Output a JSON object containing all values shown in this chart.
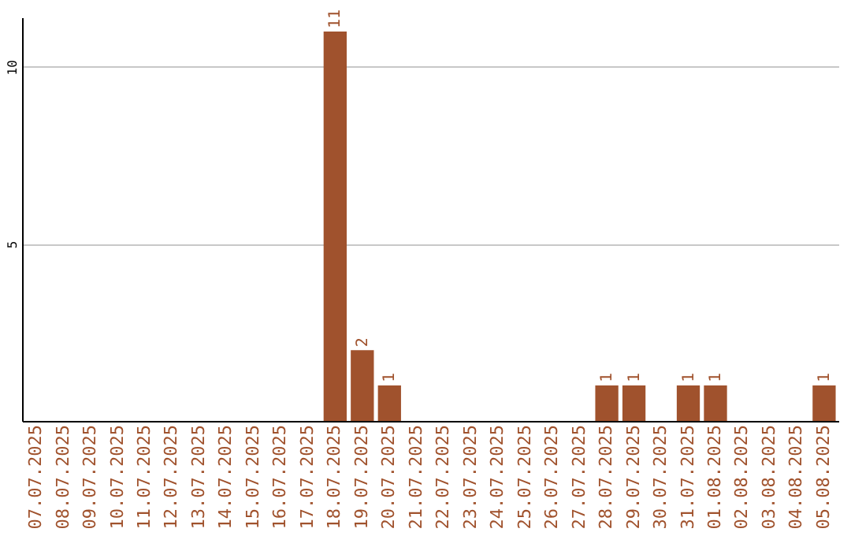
{
  "chart_data": {
    "type": "bar",
    "categories": [
      "07.07.2025",
      "08.07.2025",
      "09.07.2025",
      "10.07.2025",
      "11.07.2025",
      "12.07.2025",
      "13.07.2025",
      "14.07.2025",
      "15.07.2025",
      "16.07.2025",
      "17.07.2025",
      "18.07.2025",
      "19.07.2025",
      "20.07.2025",
      "21.07.2025",
      "22.07.2025",
      "23.07.2025",
      "24.07.2025",
      "25.07.2025",
      "26.07.2025",
      "27.07.2025",
      "28.07.2025",
      "29.07.2025",
      "30.07.2025",
      "31.07.2025",
      "01.08.2025",
      "02.08.2025",
      "03.08.2025",
      "04.08.2025",
      "05.08.2025"
    ],
    "values": [
      0,
      0,
      0,
      0,
      0,
      0,
      0,
      0,
      0,
      0,
      0,
      11,
      2,
      1,
      0,
      0,
      0,
      0,
      0,
      0,
      0,
      1,
      1,
      0,
      1,
      1,
      0,
      0,
      0,
      1
    ],
    "value_labels": [
      null,
      null,
      null,
      null,
      null,
      null,
      null,
      null,
      null,
      null,
      null,
      "11",
      "2",
      "1",
      null,
      null,
      null,
      null,
      null,
      null,
      null,
      "1",
      "1",
      null,
      "1",
      "1",
      null,
      null,
      null,
      "1"
    ],
    "color": "#a0522d",
    "ylim": [
      0,
      11.4
    ],
    "yticks": [
      5,
      10
    ],
    "grid": "y"
  }
}
